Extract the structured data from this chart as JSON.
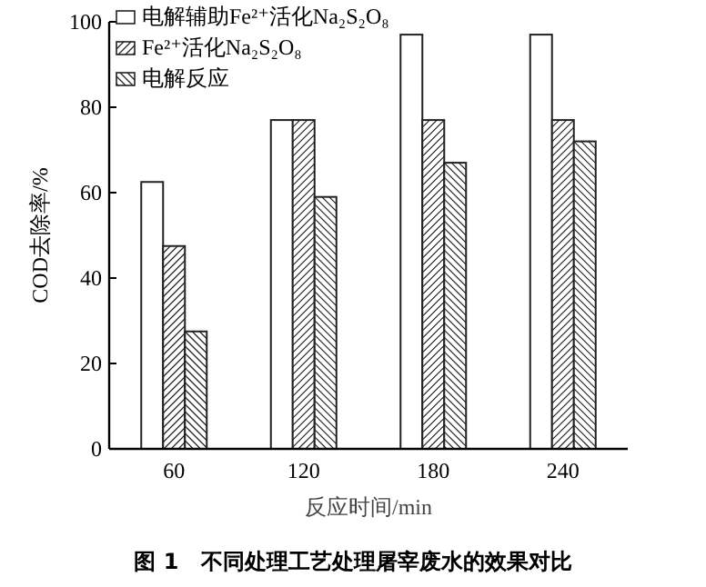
{
  "chart_data": {
    "type": "bar",
    "xlabel": "反应时间/min",
    "ylabel": "COD去除率/%",
    "categories": [
      "60",
      "120",
      "180",
      "240"
    ],
    "series": [
      {
        "name": "电解辅助Fe²⁺活化Na₂S₂O₈",
        "color": "#ffffff",
        "values": [
          62.5,
          77,
          97,
          97
        ]
      },
      {
        "name": "Fe²⁺活化Na₂S₂O₈",
        "color": "#ffffff",
        "values": [
          47.5,
          77,
          77,
          77
        ]
      },
      {
        "name": "电解反应",
        "color": "#ffffff",
        "values": [
          27.5,
          59,
          67,
          72
        ]
      }
    ],
    "ylim": [
      0,
      100
    ],
    "yticks": [
      0,
      20,
      40,
      60,
      80,
      100
    ],
    "grid": false,
    "legend": "top left",
    "annotations": [
      "图 1　不同处理工艺处理屠宰废水的效果对比"
    ]
  }
}
